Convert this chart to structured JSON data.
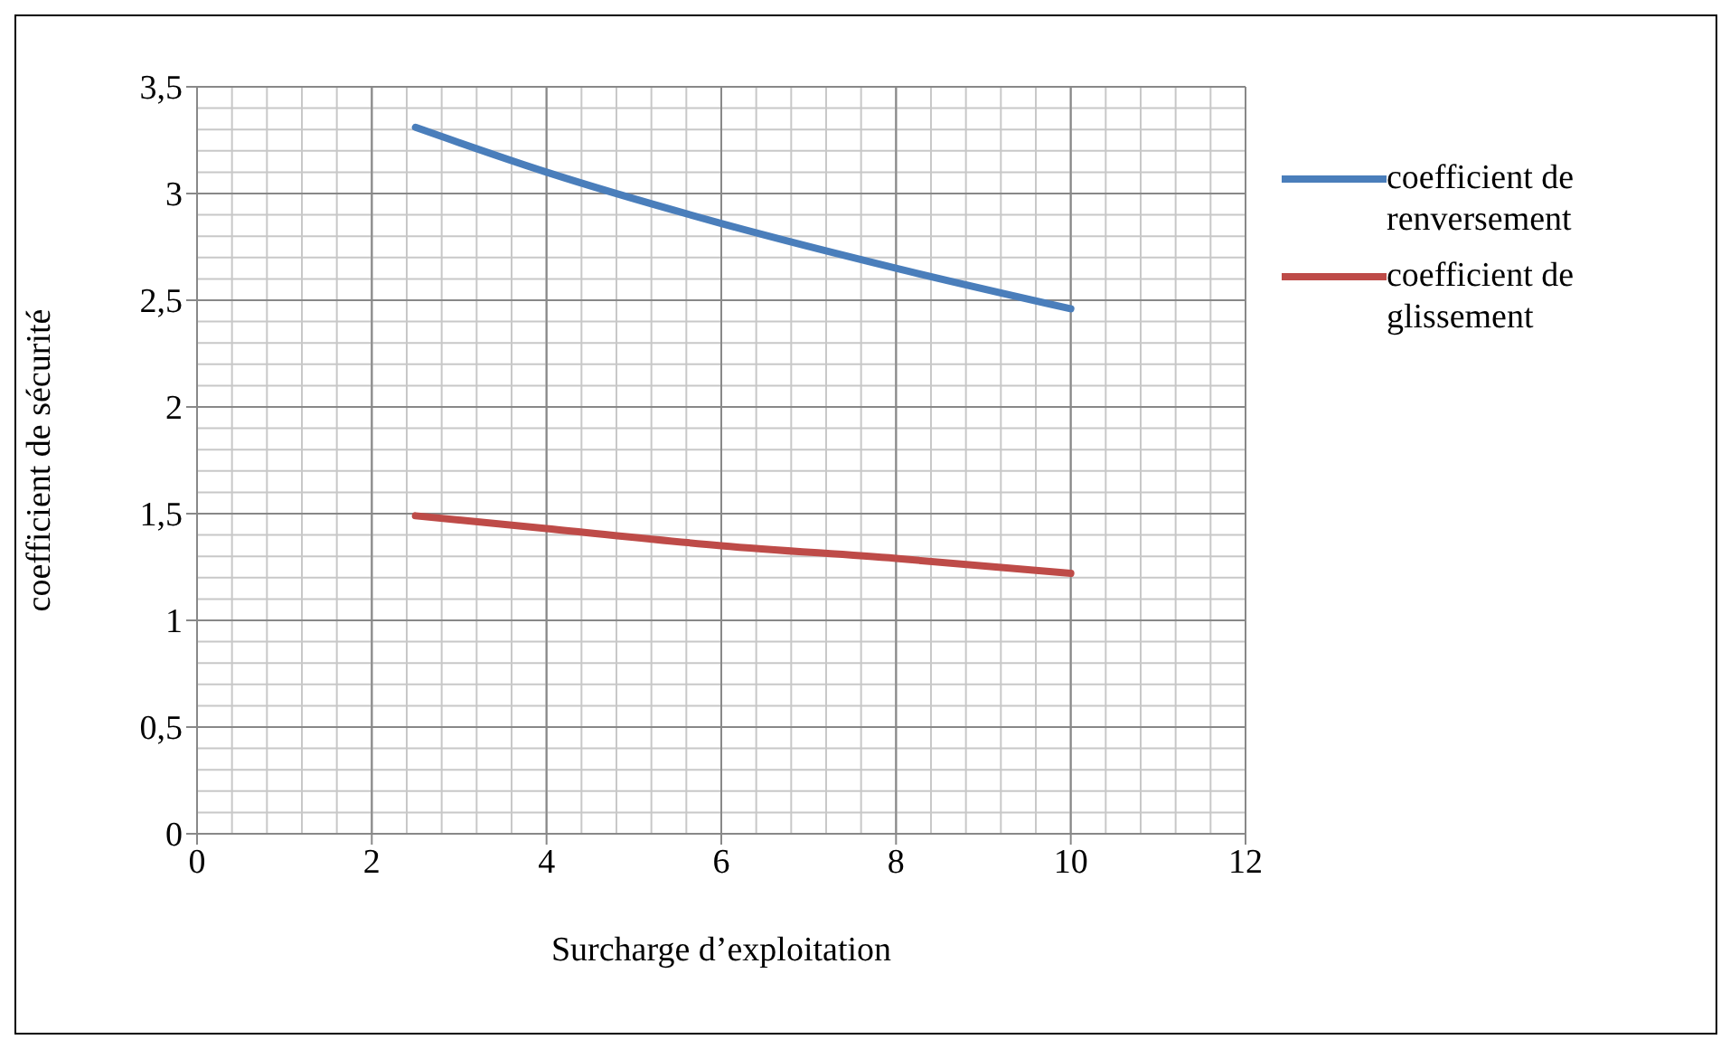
{
  "chart_data": {
    "type": "line",
    "xlabel": "Surcharge d’exploitation",
    "ylabel": "coefficient de sécurité",
    "xlim": [
      0,
      12
    ],
    "xticks": [
      0,
      2,
      4,
      6,
      8,
      10,
      12
    ],
    "ylim": [
      0,
      3.5
    ],
    "yticks": [
      0,
      {
        "value": 0.5,
        "label": "0,5"
      },
      1,
      {
        "value": 1.5,
        "label": "1,5"
      },
      2,
      {
        "value": 2.5,
        "label": "2,5"
      },
      3,
      {
        "value": 3.5,
        "label": "3,5"
      }
    ],
    "grid": true,
    "legend": "right",
    "marker": "none",
    "line_style": "solid",
    "x": [
      2.5,
      4,
      6,
      8,
      10
    ],
    "series": [
      {
        "name": "coefficient de renversement",
        "color": "#4a7ebb",
        "values": [
          3.31,
          3.1,
          2.86,
          2.65,
          2.46
        ]
      },
      {
        "name": "coefficient de glissement",
        "color": "#be4b48",
        "values": [
          1.49,
          1.43,
          1.35,
          1.29,
          1.22
        ]
      }
    ]
  }
}
